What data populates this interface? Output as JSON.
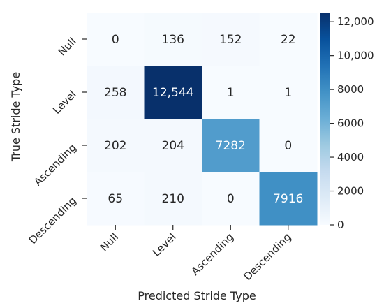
{
  "chart_data": {
    "type": "heatmap",
    "xlabel": "Predicted Stride Type",
    "ylabel": "True Stride Type",
    "x_categories": [
      "Null",
      "Level",
      "Ascending",
      "Descending"
    ],
    "y_categories": [
      "Null",
      "Level",
      "Ascending",
      "Descending"
    ],
    "values": [
      [
        0,
        136,
        152,
        22
      ],
      [
        258,
        12544,
        1,
        1
      ],
      [
        202,
        204,
        7282,
        0
      ],
      [
        65,
        210,
        0,
        7916
      ]
    ],
    "cell_labels": [
      [
        "0",
        "136",
        "152",
        "22"
      ],
      [
        "258",
        "12,544",
        "1",
        "1"
      ],
      [
        "202",
        "204",
        "7282",
        "0"
      ],
      [
        "65",
        "210",
        "0",
        "7916"
      ]
    ],
    "colormap": "Blues",
    "vmin": 0,
    "vmax": 12544,
    "colorbar_ticks": [
      0,
      2000,
      4000,
      6000,
      8000,
      10000,
      12000
    ],
    "colorbar_tick_labels": [
      "0",
      "2000",
      "4000",
      "6000",
      "8000",
      "10,000",
      "12,000"
    ]
  }
}
